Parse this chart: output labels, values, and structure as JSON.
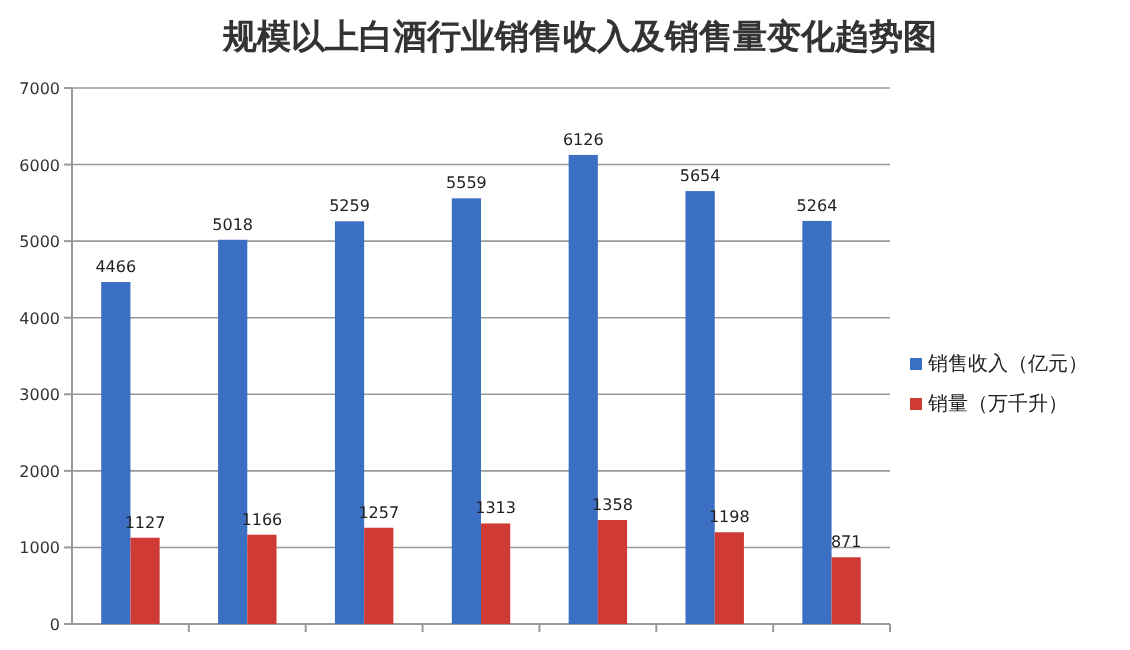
{
  "chart_data": {
    "type": "bar",
    "title": "规模以上白酒行业销售收入及销售量变化趋势图",
    "categories": [
      null,
      null,
      null,
      null,
      null,
      null,
      null
    ],
    "series": [
      {
        "name": "销售收入（亿元）",
        "color": "#3a6fc4",
        "values": [
          4466,
          5018,
          5259,
          5559,
          6126,
          5654,
          5264
        ]
      },
      {
        "name": "销量（万千升）",
        "color": "#d03a35",
        "values": [
          1127,
          1166,
          1257,
          1313,
          1358,
          1198,
          871
        ]
      }
    ],
    "ylim": [
      0,
      7000
    ],
    "yticks": [
      0,
      1000,
      2000,
      3000,
      4000,
      5000,
      6000,
      7000
    ],
    "grid": "y",
    "legend": "right",
    "data_labels": true
  }
}
